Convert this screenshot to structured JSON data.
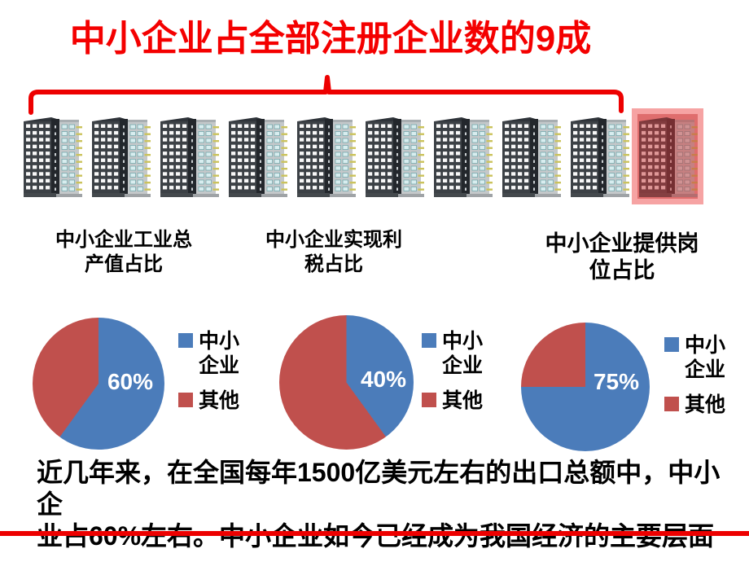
{
  "slide": {
    "title": "中小企业占全部注册企业数的9成",
    "footer": {
      "line1": "近几年来，在全国每年1500亿美元左右的出口总额中，中小企",
      "line2": "业占60%左右。中小企业如今已经成为我国经济的主要层面"
    }
  },
  "buildings": {
    "count": 10,
    "bracketed_count": 9,
    "highlighted_index": 9
  },
  "colors": {
    "title_red": "#F40000",
    "bracket_red": "#ED0000",
    "bottom_rule_red": "#ED0000",
    "pie_blue": "#4B7CBA",
    "pie_red": "#C0504D",
    "highlight_pink": "#F6A3A3",
    "pie_label_white": "#FFFFFF"
  },
  "legend": {
    "item1_line1": "中小",
    "item1_line2": "企业",
    "item2_label": "其他"
  },
  "chart_data": [
    {
      "type": "pie",
      "title": "中小企业工业总产值占比",
      "title_line1": "中小企业工业总",
      "title_line2": "产值占比",
      "slices": [
        {
          "label": "中小企业",
          "value": 60,
          "color": "#4B7CBA"
        },
        {
          "label": "其他",
          "value": 40,
          "color": "#C0504D"
        }
      ],
      "data_label": "60%",
      "legend_position": "right",
      "start_angle_deg": 0,
      "direction": "clockwise"
    },
    {
      "type": "pie",
      "title": "中小企业实现利税占比",
      "title_line1": "中小企业实现利",
      "title_line2": "税占比",
      "slices": [
        {
          "label": "中小企业",
          "value": 40,
          "color": "#4B7CBA"
        },
        {
          "label": "其他",
          "value": 60,
          "color": "#C0504D"
        }
      ],
      "data_label": "40%",
      "legend_position": "right",
      "start_angle_deg": 0,
      "direction": "clockwise"
    },
    {
      "type": "pie",
      "title": "中小企业提供岗位占比",
      "title_line1": "中小企业提供岗",
      "title_line2": "位占比",
      "slices": [
        {
          "label": "中小企业",
          "value": 75,
          "color": "#4B7CBA"
        },
        {
          "label": "其他",
          "value": 25,
          "color": "#C0504D"
        }
      ],
      "data_label": "75%",
      "legend_position": "right",
      "start_angle_deg": 0,
      "direction": "clockwise"
    }
  ]
}
